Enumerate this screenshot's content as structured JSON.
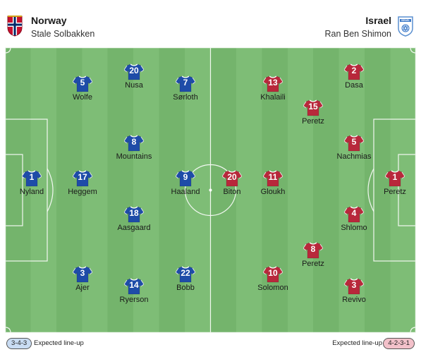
{
  "home": {
    "name": "Norway",
    "coach": "Stale Solbakken",
    "formation": "3-4-3",
    "lineup_label": "Expected line-up",
    "crest_icon": "norway-crest-icon",
    "kit_color": "#1e4ca8",
    "kit_trim": "#ffffff",
    "players": [
      {
        "number": "1",
        "name": "Nyland"
      },
      {
        "number": "17",
        "name": "Heggem"
      },
      {
        "number": "5",
        "name": "Wolfe"
      },
      {
        "number": "3",
        "name": "Ajer"
      },
      {
        "number": "20",
        "name": "Nusa"
      },
      {
        "number": "8",
        "name": "Mountains"
      },
      {
        "number": "18",
        "name": "Aasgaard"
      },
      {
        "number": "14",
        "name": "Ryerson"
      },
      {
        "number": "7",
        "name": "Sørloth"
      },
      {
        "number": "9",
        "name": "Haaland"
      },
      {
        "number": "22",
        "name": "Bobb"
      }
    ]
  },
  "away": {
    "name": "Israel",
    "coach": "Ran Ben Shimon",
    "formation": "4-2-3-1",
    "lineup_label": "Expected line-up",
    "crest_icon": "israel-crest-icon",
    "crest_text": "ISRAEL",
    "kit_color": "#b8283b",
    "kit_trim": "#ffffff",
    "players": [
      {
        "number": "20",
        "name": "Biton"
      },
      {
        "number": "13",
        "name": "Khalaili"
      },
      {
        "number": "11",
        "name": "Gloukh"
      },
      {
        "number": "10",
        "name": "Solomon"
      },
      {
        "number": "15",
        "name": "Peretz"
      },
      {
        "number": "8",
        "name": "Peretz"
      },
      {
        "number": "2",
        "name": "Dasa"
      },
      {
        "number": "5",
        "name": "Nachmias"
      },
      {
        "number": "4",
        "name": "Shlomo"
      },
      {
        "number": "3",
        "name": "Revivo"
      },
      {
        "number": "1",
        "name": "Peretz"
      }
    ]
  }
}
